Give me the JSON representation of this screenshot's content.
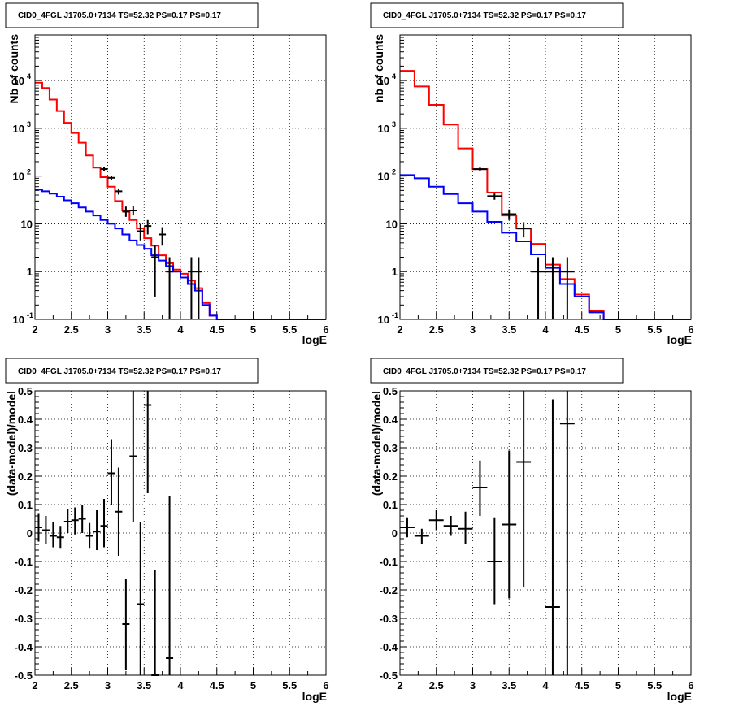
{
  "chart_data": [
    {
      "type": "histogram",
      "title": "CID0_4FGL J1705.0+7134 TS=52.32 PS=0.17 PS=0.17",
      "xlabel": "logE",
      "ylabel": "Nb of counts",
      "xlim": [
        2,
        6
      ],
      "ylim": [
        0.1,
        90000
      ],
      "yscale": "log",
      "grid": true,
      "x_ticks": [
        "2",
        "2.5",
        "3",
        "3.5",
        "4",
        "4.5",
        "5",
        "5.5",
        "6"
      ],
      "y_ticks": [
        {
          "base": "10",
          "exp": "-1",
          "value": 0.1
        },
        {
          "base": "1",
          "exp": "",
          "value": 1
        },
        {
          "base": "10",
          "exp": "",
          "value": 10
        },
        {
          "base": "10",
          "exp": "2",
          "value": 100
        },
        {
          "base": "10",
          "exp": "3",
          "value": 1000
        },
        {
          "base": "10",
          "exp": "4",
          "value": 10000
        }
      ],
      "bin_edges": [
        2.0,
        2.1,
        2.2,
        2.3,
        2.4,
        2.5,
        2.6,
        2.7,
        2.8,
        2.9,
        3.0,
        3.1,
        3.2,
        3.3,
        3.4,
        3.5,
        3.6,
        3.7,
        3.8,
        3.9,
        4.0,
        4.1,
        4.2,
        4.3,
        4.4,
        4.5,
        4.6,
        4.7,
        4.8,
        4.9,
        5.0,
        5.1,
        5.2,
        5.3,
        5.4,
        5.5,
        5.6,
        5.7,
        5.8,
        5.9,
        6.0
      ],
      "series": [
        {
          "color": "#ff0000",
          "values": [
            9000,
            7000,
            4000,
            2300,
            1300,
            800,
            500,
            270,
            150,
            95,
            60,
            30,
            19,
            12,
            8,
            5,
            3.5,
            2.2,
            1.5,
            1.1,
            0.9,
            0.65,
            0.45,
            0.22,
            0.12,
            0.1,
            0.1,
            0.1,
            0.1,
            0.1,
            0.1,
            0.1,
            0.1,
            0.1,
            0.1,
            0.1,
            0.1,
            0.1,
            0.1,
            0.1
          ]
        },
        {
          "color": "#0000ff",
          "values": [
            52,
            48,
            43,
            37,
            31,
            27,
            22,
            18,
            15,
            12,
            10,
            8,
            6,
            4.5,
            3.6,
            3,
            2.2,
            1.7,
            1.3,
            1,
            0.75,
            0.55,
            0.4,
            0.2,
            0.12,
            0.1,
            0.1,
            0.1,
            0.1,
            0.1,
            0.1,
            0.1,
            0.1,
            0.1,
            0.1,
            0.1,
            0.1,
            0.1,
            0.1,
            0.1
          ]
        }
      ],
      "data_points": [
        {
          "x": 2.95,
          "y": 140,
          "xerr": 0.05,
          "ylo": 128,
          "yhi": 152
        },
        {
          "x": 3.05,
          "y": 92,
          "xerr": 0.05,
          "ylo": 83,
          "yhi": 101
        },
        {
          "x": 3.15,
          "y": 48,
          "xerr": 0.05,
          "ylo": 41,
          "yhi": 55
        },
        {
          "x": 3.25,
          "y": 18,
          "xerr": 0.05,
          "ylo": 14,
          "yhi": 23
        },
        {
          "x": 3.35,
          "y": 19,
          "xerr": 0.05,
          "ylo": 15,
          "yhi": 24
        },
        {
          "x": 3.45,
          "y": 7,
          "xerr": 0.05,
          "ylo": 4.5,
          "yhi": 10
        },
        {
          "x": 3.55,
          "y": 9,
          "xerr": 0.05,
          "ylo": 6,
          "yhi": 12
        },
        {
          "x": 3.65,
          "y": 2,
          "xerr": 0.05,
          "ylo": 0.3,
          "yhi": 3.5
        },
        {
          "x": 3.75,
          "y": 6,
          "xerr": 0.05,
          "ylo": 3.5,
          "yhi": 8.5
        },
        {
          "x": 3.85,
          "y": 1,
          "xerr": 0.05,
          "ylo": 0.1,
          "yhi": 2
        },
        {
          "x": 4.15,
          "y": 1,
          "xerr": 0.05,
          "ylo": 0.1,
          "yhi": 2
        },
        {
          "x": 4.25,
          "y": 1,
          "xerr": 0.05,
          "ylo": 0.1,
          "yhi": 2
        }
      ]
    },
    {
      "type": "histogram",
      "title": "CID0_4FGL J1705.0+7134 TS=52.32 PS=0.17 PS=0.17",
      "xlabel": "logE",
      "ylabel": "nb of counts",
      "xlim": [
        2,
        6
      ],
      "ylim": [
        0.1,
        90000
      ],
      "yscale": "log",
      "grid": true,
      "x_ticks": [
        "2",
        "2.5",
        "3",
        "3.5",
        "4",
        "4.5",
        "5",
        "5.5",
        "6"
      ],
      "y_ticks": [
        {
          "base": "10",
          "exp": "-1",
          "value": 0.1
        },
        {
          "base": "1",
          "exp": "",
          "value": 1
        },
        {
          "base": "10",
          "exp": "",
          "value": 10
        },
        {
          "base": "10",
          "exp": "2",
          "value": 100
        },
        {
          "base": "10",
          "exp": "3",
          "value": 1000
        },
        {
          "base": "10",
          "exp": "4",
          "value": 10000
        }
      ],
      "bin_edges": [
        2.0,
        2.2,
        2.4,
        2.6,
        2.8,
        3.0,
        3.2,
        3.4,
        3.6,
        3.8,
        4.0,
        4.2,
        4.4,
        4.6,
        4.8,
        5.0,
        5.2,
        5.4,
        5.6,
        5.8,
        6.0
      ],
      "series": [
        {
          "color": "#ff0000",
          "values": [
            16000,
            7500,
            3100,
            1200,
            380,
            140,
            45,
            15,
            8,
            3.8,
            1.4,
            0.7,
            0.33,
            0.15,
            0.1,
            0.1,
            0.1,
            0.1,
            0.1,
            0.1
          ]
        },
        {
          "color": "#0000ff",
          "values": [
            105,
            90,
            60,
            42,
            27,
            18,
            11,
            6.5,
            4.3,
            2.3,
            1.2,
            0.55,
            0.3,
            0.14,
            0.1,
            0.1,
            0.1,
            0.1,
            0.1,
            0.1
          ]
        }
      ],
      "data_points": [
        {
          "x": 3.1,
          "y": 140,
          "xerr": 0.1,
          "ylo": 125,
          "yhi": 155
        },
        {
          "x": 3.3,
          "y": 38,
          "xerr": 0.1,
          "ylo": 32,
          "yhi": 44
        },
        {
          "x": 3.5,
          "y": 16,
          "xerr": 0.1,
          "ylo": 12,
          "yhi": 20
        },
        {
          "x": 3.7,
          "y": 8,
          "xerr": 0.1,
          "ylo": 5.2,
          "yhi": 10.8
        },
        {
          "x": 3.9,
          "y": 1,
          "xerr": 0.1,
          "ylo": 0.1,
          "yhi": 2
        },
        {
          "x": 4.1,
          "y": 1,
          "xerr": 0.1,
          "ylo": 0.1,
          "yhi": 2
        },
        {
          "x": 4.3,
          "y": 1,
          "xerr": 0.1,
          "ylo": 0.1,
          "yhi": 2
        }
      ]
    },
    {
      "type": "scatter",
      "title": "CID0_4FGL J1705.0+7134 TS=52.32 PS=0.17 PS=0.17",
      "xlabel": "logE",
      "ylabel": "(data-model)/model",
      "xlim": [
        2,
        6
      ],
      "ylim": [
        -0.5,
        0.5
      ],
      "grid": true,
      "x_ticks": [
        "2",
        "2.5",
        "3",
        "3.5",
        "4",
        "4.5",
        "5",
        "5.5",
        "6"
      ],
      "y_ticks": [
        "-0.5",
        "-0.4",
        "-0.3",
        "-0.2",
        "-0.1",
        "0",
        "0.1",
        "0.2",
        "0.3",
        "0.4",
        "0.5"
      ],
      "data_points": [
        {
          "x": 2.05,
          "y": 0.02,
          "xerr": 0.05,
          "ylo": -0.03,
          "yhi": 0.07
        },
        {
          "x": 2.15,
          "y": 0.01,
          "xerr": 0.05,
          "ylo": -0.04,
          "yhi": 0.06
        },
        {
          "x": 2.25,
          "y": -0.01,
          "xerr": 0.05,
          "ylo": -0.05,
          "yhi": 0.04
        },
        {
          "x": 2.35,
          "y": -0.015,
          "xerr": 0.05,
          "ylo": -0.055,
          "yhi": 0.025
        },
        {
          "x": 2.45,
          "y": 0.04,
          "xerr": 0.05,
          "ylo": 0.0,
          "yhi": 0.085
        },
        {
          "x": 2.55,
          "y": 0.045,
          "xerr": 0.05,
          "ylo": -0.005,
          "yhi": 0.09
        },
        {
          "x": 2.65,
          "y": 0.05,
          "xerr": 0.05,
          "ylo": 0.0,
          "yhi": 0.1
        },
        {
          "x": 2.75,
          "y": -0.01,
          "xerr": 0.05,
          "ylo": -0.055,
          "yhi": 0.035
        },
        {
          "x": 2.85,
          "y": 0.005,
          "xerr": 0.05,
          "ylo": -0.06,
          "yhi": 0.08
        },
        {
          "x": 2.95,
          "y": 0.025,
          "xerr": 0.05,
          "ylo": -0.05,
          "yhi": 0.12
        },
        {
          "x": 3.05,
          "y": 0.21,
          "xerr": 0.05,
          "ylo": 0.1,
          "yhi": 0.33
        },
        {
          "x": 3.15,
          "y": 0.075,
          "xerr": 0.05,
          "ylo": -0.08,
          "yhi": 0.23
        },
        {
          "x": 3.25,
          "y": -0.32,
          "xerr": 0.05,
          "ylo": -0.48,
          "yhi": -0.16
        },
        {
          "x": 3.35,
          "y": 0.27,
          "xerr": 0.05,
          "ylo": 0.04,
          "yhi": 0.5
        },
        {
          "x": 3.45,
          "y": -0.25,
          "xerr": 0.05,
          "ylo": -0.5,
          "yhi": 0.04
        },
        {
          "x": 3.55,
          "y": 0.45,
          "xerr": 0.05,
          "ylo": 0.14,
          "yhi": 0.5
        },
        {
          "x": 3.65,
          "y": -0.5,
          "xerr": 0.05,
          "ylo": -0.5,
          "yhi": -0.13
        },
        {
          "x": 3.85,
          "y": -0.44,
          "xerr": 0.05,
          "ylo": -0.5,
          "yhi": 0.13
        }
      ]
    },
    {
      "type": "scatter",
      "title": "CID0_4FGL J1705.0+7134 TS=52.32 PS=0.17 PS=0.17",
      "xlabel": "logE",
      "ylabel": "(data-model)/model",
      "xlim": [
        2,
        6
      ],
      "ylim": [
        -0.5,
        0.5
      ],
      "grid": true,
      "x_ticks": [
        "2",
        "2.5",
        "3",
        "3.5",
        "4",
        "4.5",
        "5",
        "5.5",
        "6"
      ],
      "y_ticks": [
        "-0.5",
        "-0.4",
        "-0.3",
        "-0.2",
        "-0.1",
        "0",
        "0.1",
        "0.2",
        "0.3",
        "0.4",
        "0.5"
      ],
      "data_points": [
        {
          "x": 2.1,
          "y": 0.02,
          "xerr": 0.1,
          "ylo": -0.015,
          "yhi": 0.055
        },
        {
          "x": 2.3,
          "y": -0.01,
          "xerr": 0.1,
          "ylo": -0.04,
          "yhi": 0.015
        },
        {
          "x": 2.5,
          "y": 0.045,
          "xerr": 0.1,
          "ylo": 0.01,
          "yhi": 0.08
        },
        {
          "x": 2.7,
          "y": 0.025,
          "xerr": 0.1,
          "ylo": -0.01,
          "yhi": 0.06
        },
        {
          "x": 2.9,
          "y": 0.015,
          "xerr": 0.1,
          "ylo": -0.04,
          "yhi": 0.075
        },
        {
          "x": 3.1,
          "y": 0.16,
          "xerr": 0.1,
          "ylo": 0.06,
          "yhi": 0.255
        },
        {
          "x": 3.3,
          "y": -0.1,
          "xerr": 0.1,
          "ylo": -0.25,
          "yhi": 0.055
        },
        {
          "x": 3.5,
          "y": 0.03,
          "xerr": 0.1,
          "ylo": -0.23,
          "yhi": 0.29
        },
        {
          "x": 3.7,
          "y": 0.25,
          "xerr": 0.1,
          "ylo": -0.19,
          "yhi": 0.5
        },
        {
          "x": 4.1,
          "y": -0.26,
          "xerr": 0.1,
          "ylo": -0.5,
          "yhi": 0.47
        },
        {
          "x": 4.3,
          "y": 0.385,
          "xerr": 0.1,
          "ylo": -0.5,
          "yhi": 0.5
        }
      ]
    }
  ]
}
